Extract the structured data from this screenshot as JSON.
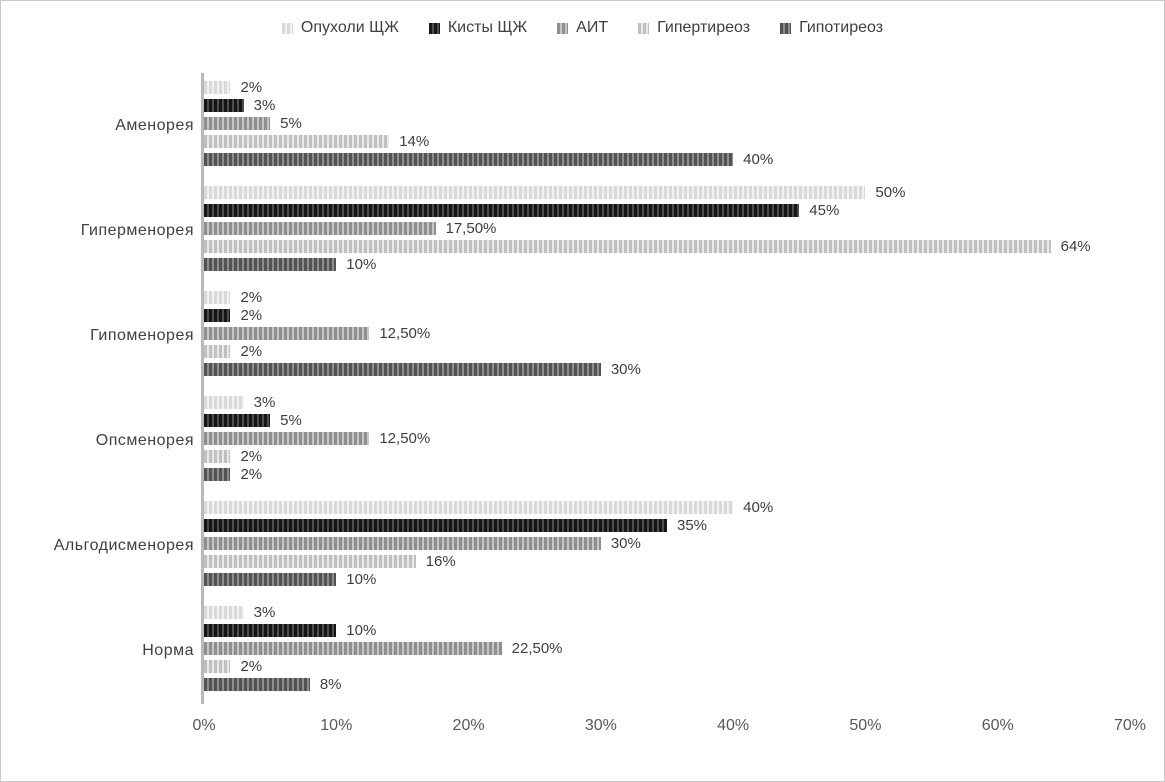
{
  "chart_data": {
    "type": "bar",
    "orientation": "horizontal",
    "title": "",
    "categories": [
      "Аменорея",
      "Гиперменорея",
      "Гипоменорея",
      "Опсменорея",
      "Альгодисменорея",
      "Норма"
    ],
    "series": [
      {
        "name": "Опухоли ЩЖ",
        "values": [
          2,
          50,
          2,
          3,
          40,
          3
        ],
        "labels": [
          "2%",
          "50%",
          "2%",
          "3%",
          "40%",
          "3%"
        ],
        "stripe_color": "#d9d9d9",
        "gap_color": "#f2f2f2"
      },
      {
        "name": "Кисты ЩЖ",
        "values": [
          3,
          45,
          2,
          5,
          35,
          10
        ],
        "labels": [
          "3%",
          "45%",
          "2%",
          "5%",
          "35%",
          "10%"
        ],
        "stripe_color": "#161616",
        "gap_color": "#4d4d4d"
      },
      {
        "name": "АИТ",
        "values": [
          5,
          17.5,
          12.5,
          12.5,
          30,
          22.5
        ],
        "labels": [
          "5%",
          "17,50%",
          "12,50%",
          "12,50%",
          "30%",
          "22,50%"
        ],
        "stripe_color": "#8f8f8f",
        "gap_color": "#c6c6c6"
      },
      {
        "name": "Гипертиреоз",
        "values": [
          14,
          64,
          2,
          2,
          16,
          2
        ],
        "labels": [
          "14%",
          "64%",
          "2%",
          "2%",
          "16%",
          "2%"
        ],
        "stripe_color": "#c0c0c0",
        "gap_color": "#e9e9e9"
      },
      {
        "name": "Гипотиреоз",
        "values": [
          40,
          10,
          30,
          2,
          10,
          8
        ],
        "labels": [
          "40%",
          "10%",
          "30%",
          "2%",
          "10%",
          "8%"
        ],
        "stripe_color": "#535353",
        "gap_color": "#8e8e8e"
      }
    ],
    "x_axis": {
      "min": 0,
      "max": 70,
      "tick_labels": [
        "0%",
        "10%",
        "20%",
        "30%",
        "40%",
        "50%",
        "60%",
        "70%"
      ]
    },
    "legend_position": "top",
    "grid": false,
    "axis_line_color": "#b9b9b9",
    "label_text_color": "#3d3d3d"
  }
}
